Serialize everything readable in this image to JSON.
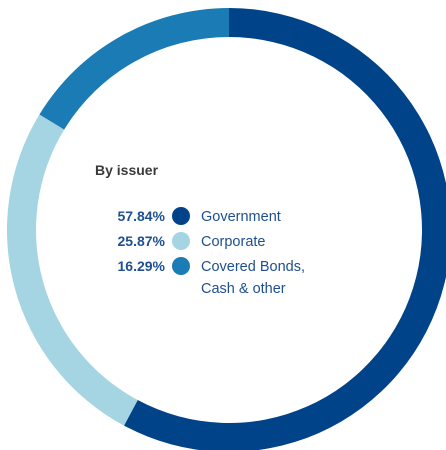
{
  "chart_data": {
    "type": "pie",
    "title": "By issuer",
    "categories": [
      "Government",
      "Corporate",
      "Covered Bonds, Cash & other"
    ],
    "values": [
      57.84,
      25.87,
      16.29
    ],
    "value_labels": [
      "57.84%",
      "25.87%",
      "16.29%"
    ],
    "colors": [
      "#004388",
      "#a5d4e2",
      "#1b7bb5"
    ],
    "donut": true,
    "start_angle_deg": 0,
    "direction": "clockwise",
    "legend_placement": "center"
  }
}
